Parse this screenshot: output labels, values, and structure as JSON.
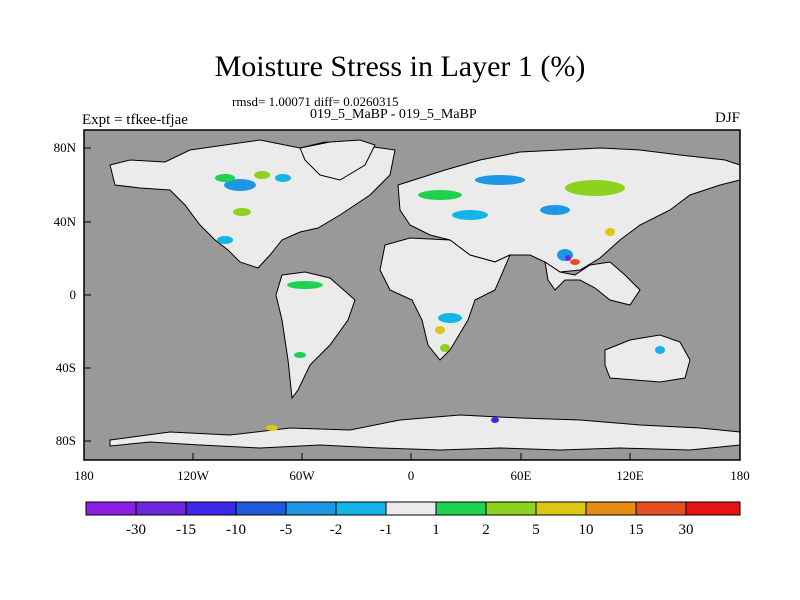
{
  "header": {
    "title": "Moisture Stress in Layer 1 (%)",
    "stats": "rmsd= 1.00071 diff= 0.0260315",
    "subtitle": "019_5_MaBP - 019_5_MaBP",
    "left_label": "Expt = tfkee-tfjae",
    "right_label": "DJF"
  },
  "map": {
    "ocean_color": "#999999",
    "land_color": "#ebebeb",
    "lon_ticks": [
      "180",
      "120W",
      "60W",
      "0",
      "60E",
      "120E",
      "180"
    ],
    "lat_ticks": [
      "80N",
      "40N",
      "0",
      "40S",
      "80S"
    ]
  },
  "colorbar": {
    "colors": [
      "#8c1ee6",
      "#6e28dc",
      "#3c28e6",
      "#1e5adc",
      "#1e96e6",
      "#14b4e6",
      "#ebebeb",
      "#1ed250",
      "#8cd21e",
      "#dcc814",
      "#e68c14",
      "#e6501e",
      "#e61414"
    ],
    "labels": [
      "-30",
      "-15",
      "-10",
      "-5",
      "-2",
      "-1",
      "1",
      "2",
      "5",
      "10",
      "15",
      "30"
    ]
  }
}
